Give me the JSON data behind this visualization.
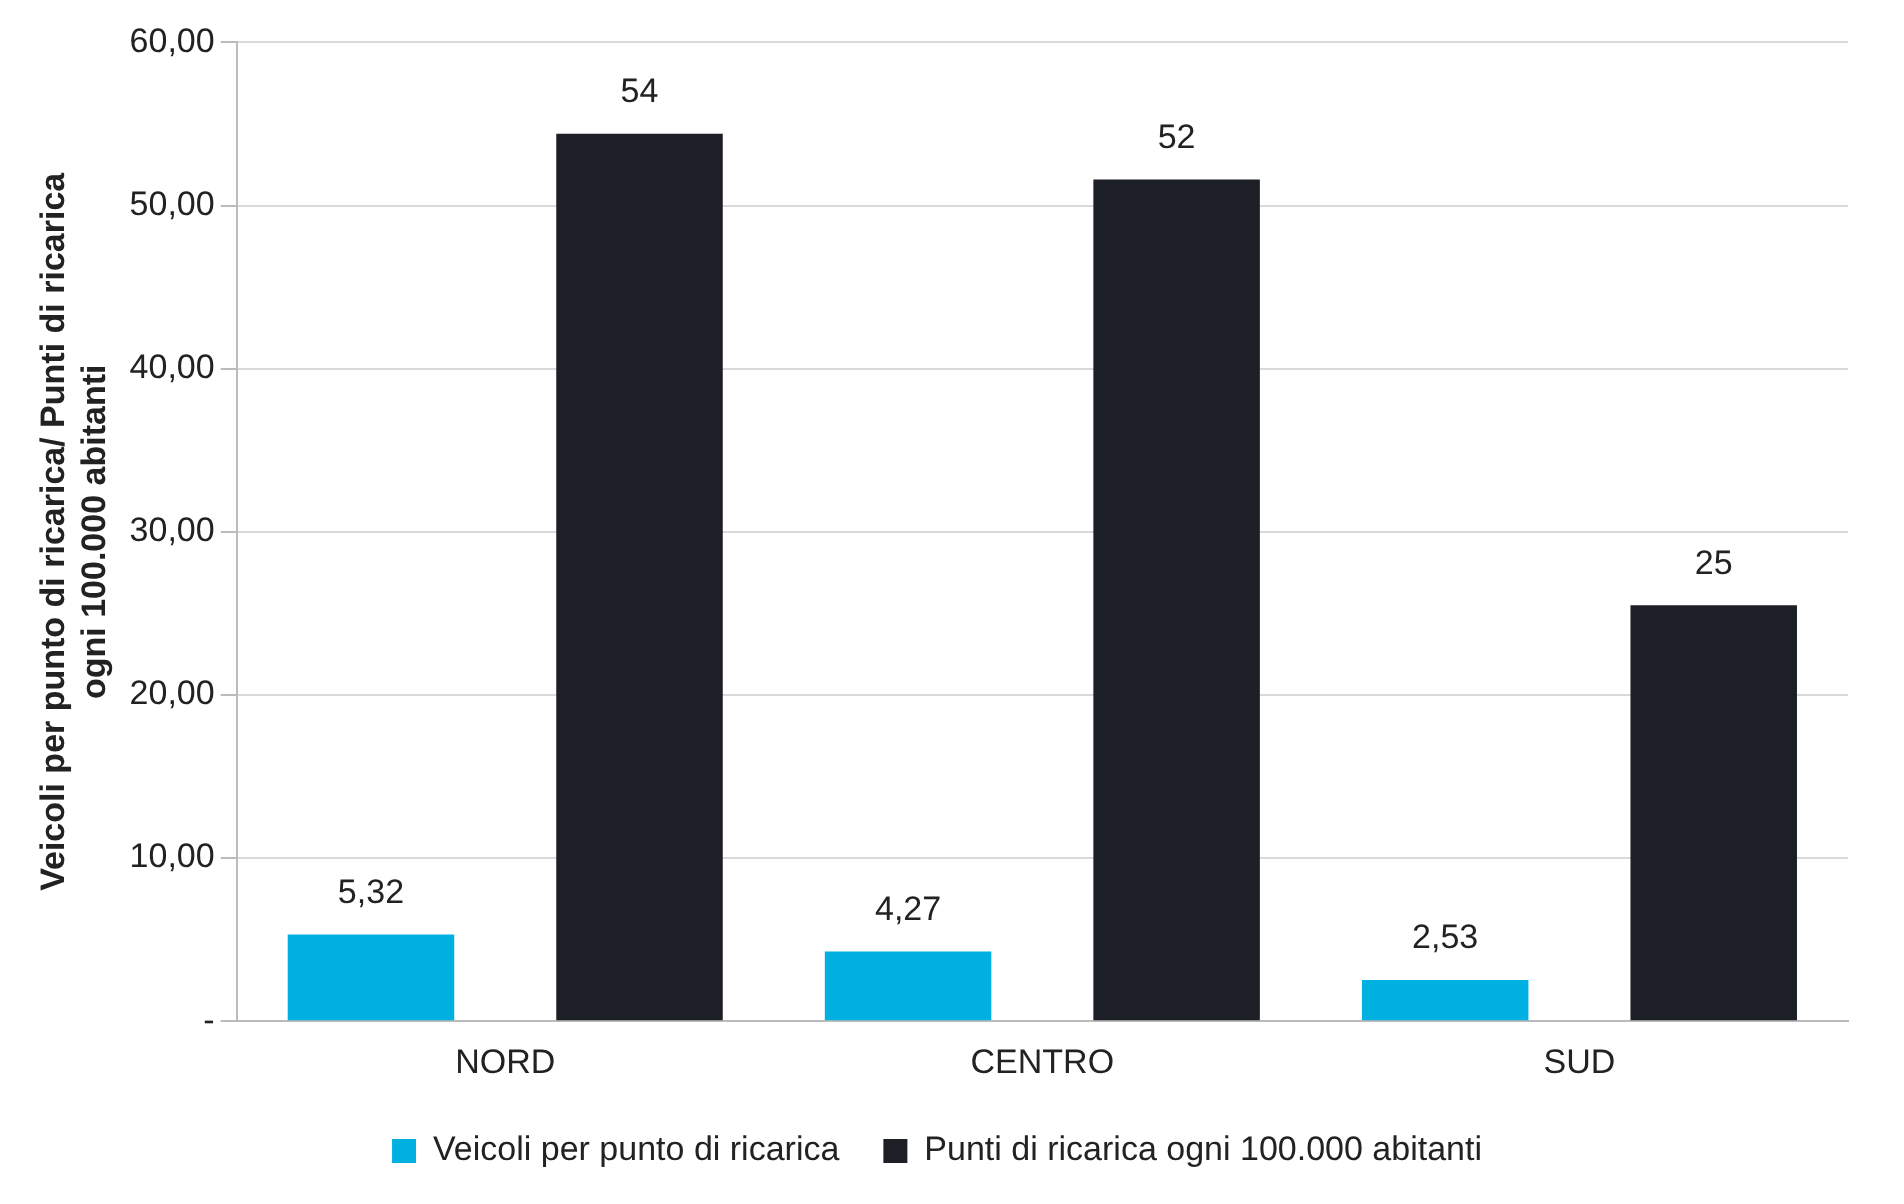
{
  "chart_data": {
    "type": "bar",
    "ylabel": "Veicoli per punto di ricarica/ Punti di ricarica\nogni 100.000 abitanti",
    "categories": [
      "NORD",
      "CENTRO",
      "SUD"
    ],
    "series": [
      {
        "name": "Veicoli per punto di ricarica",
        "color": "#00b0e0",
        "values": [
          5.32,
          4.27,
          2.53
        ],
        "value_labels": [
          "5,32",
          "4,27",
          "2,53"
        ]
      },
      {
        "name": "Punti di ricarica ogni 100.000 abitanti",
        "color": "#1c1f26",
        "values": [
          54.4,
          51.6,
          25.5
        ],
        "value_labels": [
          "54",
          "52",
          "25"
        ]
      }
    ],
    "ylim": [
      0,
      60
    ],
    "yticks": [
      {
        "value": 0,
        "label": "-"
      },
      {
        "value": 10,
        "label": "10,00"
      },
      {
        "value": 20,
        "label": "20,00"
      },
      {
        "value": 30,
        "label": "30,00"
      },
      {
        "value": 40,
        "label": "40,00"
      },
      {
        "value": 50,
        "label": "50,00"
      },
      {
        "value": 60,
        "label": "60,00"
      }
    ],
    "grid": "y",
    "legend": "bottom"
  }
}
